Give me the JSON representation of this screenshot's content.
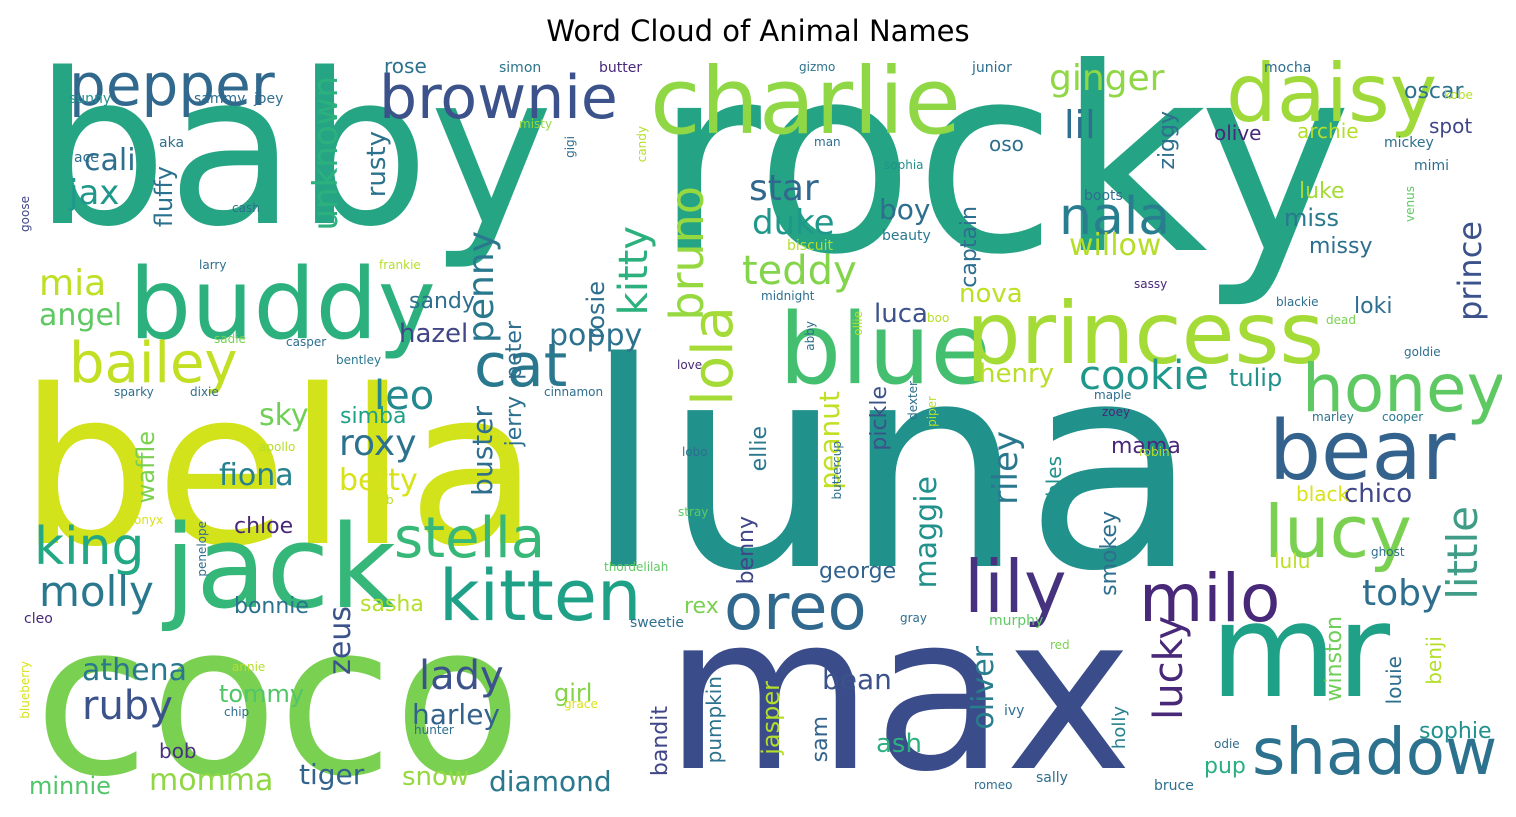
{
  "title": "Word Cloud of Animal Names",
  "colors": {
    "background": "#ffffff",
    "palette": [
      "#440154",
      "#482878",
      "#3b528b",
      "#31688e",
      "#26828e",
      "#1f9e89",
      "#35b779",
      "#6ece58",
      "#b5de2b",
      "#fde725"
    ]
  },
  "words": {
    "large": [
      "luna",
      "rocky",
      "baby",
      "bella",
      "coco",
      "max",
      "mr",
      "charlie",
      "daisy",
      "buddy",
      "blue",
      "jack",
      "princess"
    ],
    "medium": [
      "brownie",
      "pepper",
      "bear",
      "lucy",
      "honey",
      "shadow",
      "stella",
      "kitten",
      "oreo",
      "milo",
      "lily",
      "nala",
      "bailey",
      "king",
      "molly",
      "cat",
      "cookie",
      "teddy",
      "star",
      "duke",
      "ginger",
      "lil",
      "roxy",
      "leo",
      "lady",
      "ruby",
      "toby"
    ],
    "small": [
      "willow",
      "henry",
      "nova",
      "tulip",
      "betty",
      "sky",
      "fiona",
      "simba",
      "hazel",
      "poppy",
      "sandy",
      "mia",
      "angel",
      "cali",
      "jax",
      "harley",
      "athena",
      "tommy",
      "bonnie",
      "chloe",
      "momma",
      "minnie",
      "tiger",
      "snow",
      "diamond",
      "bean",
      "ash",
      "george",
      "chico",
      "luca",
      "boy",
      "mama",
      "sasha",
      "rex",
      "girl",
      "bob",
      "sophie",
      "pup",
      "luke",
      "miss",
      "missy",
      "loki",
      "oscar",
      "spot",
      "olive",
      "archie",
      "black",
      "lulu",
      "oso",
      "rose"
    ],
    "vertical": [
      "bruno",
      "lola",
      "kitty",
      "penny",
      "peter",
      "rosie",
      "unknown",
      "rusty",
      "fluffy",
      "waffle",
      "buster",
      "jerry",
      "canelo",
      "peanut",
      "pickle",
      "ellie",
      "maggie",
      "riley",
      "captain",
      "ziggy",
      "prince",
      "little",
      "lucky",
      "oliver",
      "zeus",
      "smokey",
      "bubbles",
      "winston",
      "benji",
      "louie",
      "jasper",
      "pumpkin",
      "bandit",
      "benny",
      "sam",
      "holly"
    ],
    "tiny": [
      "simon",
      "butter",
      "gizmo",
      "junior",
      "mocha",
      "kobe",
      "sunny",
      "sammy",
      "joey",
      "misty",
      "ace",
      "aka",
      "gigi",
      "candy",
      "man",
      "mickey",
      "mimi",
      "cash",
      "goose",
      "larry",
      "frankie",
      "sophia",
      "beauty",
      "biscuit",
      "boots",
      "venus",
      "midnight",
      "boo",
      "sassy",
      "blackie",
      "dead",
      "sadie",
      "casper",
      "bentley",
      "abby",
      "ollie",
      "goldie",
      "love",
      "maple",
      "zoey",
      "marley",
      "cooper",
      "sparky",
      "dixie",
      "cinnamon",
      "apollo",
      "dexter",
      "piper",
      "buttercup",
      "lobo",
      "robin",
      "b",
      "onyx",
      "penelope",
      "stray",
      "ghost",
      "thordelilah",
      "cleo",
      "sweetie",
      "gray",
      "murphy",
      "red",
      "annie",
      "chip",
      "blueberry",
      "grace",
      "hunter",
      "ivy",
      "odie",
      "romeo",
      "sally",
      "bruce"
    ]
  }
}
